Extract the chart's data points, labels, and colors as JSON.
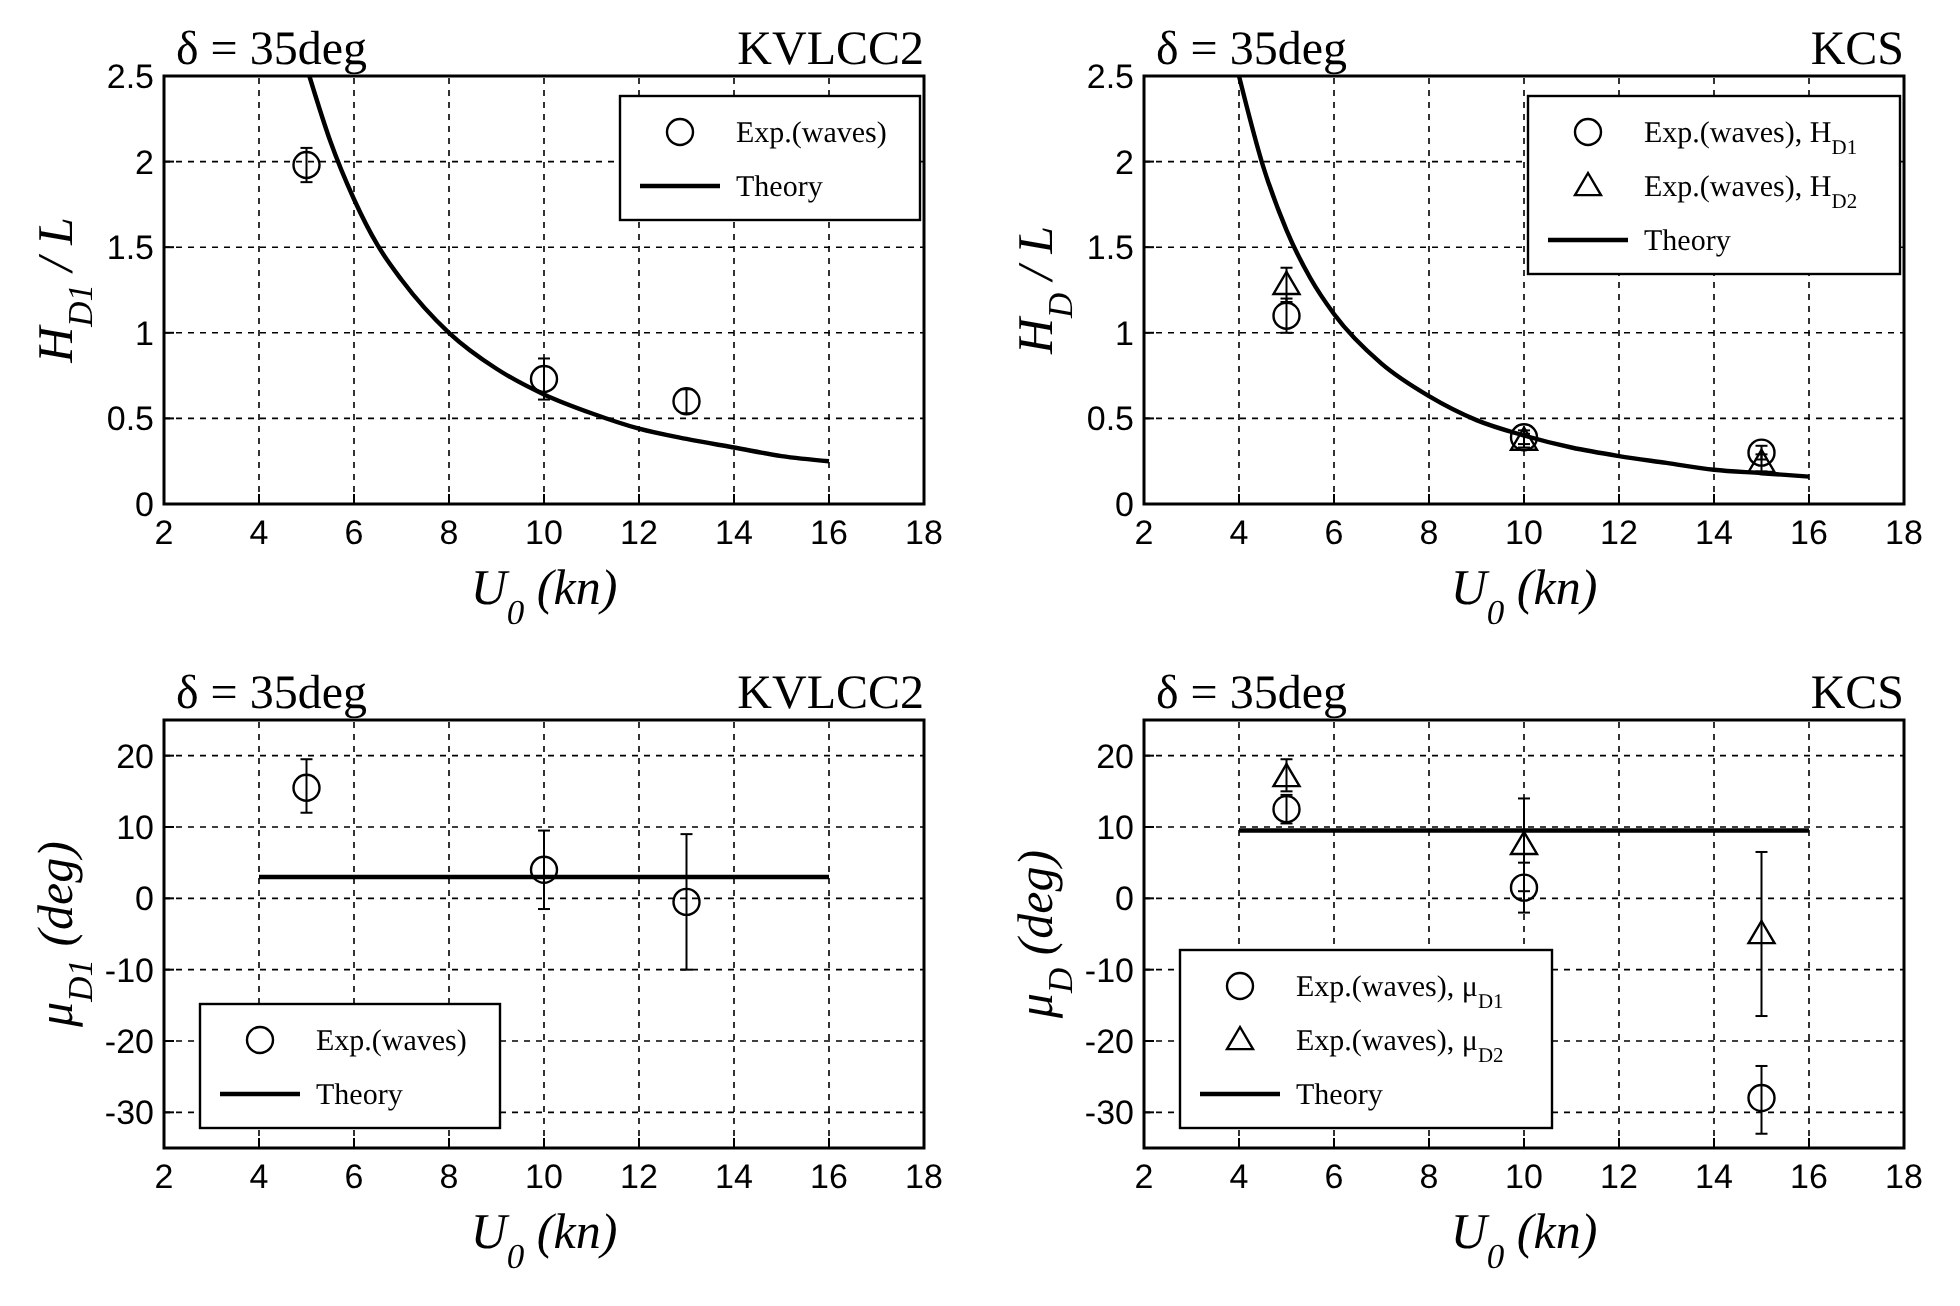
{
  "chart_data": [
    {
      "type": "scatter",
      "title": "δ = 35deg",
      "subtitle": "KVLCC2",
      "xlabel": "U$_{0}$ (kn)",
      "ylabel": "H$_{D1}$ / L",
      "xlim": [
        2,
        18
      ],
      "xticks": [
        2,
        4,
        6,
        8,
        10,
        12,
        14,
        16,
        18
      ],
      "ylim": [
        0,
        2.5
      ],
      "yticks": [
        0,
        0.5,
        1,
        1.5,
        2,
        2.5
      ],
      "grid": true,
      "legend": "top right",
      "series": [
        {
          "name": "Exp.(waves)",
          "marker": "circle",
          "color": "#000000",
          "x": [
            5,
            10,
            13
          ],
          "values": [
            1.98,
            0.73,
            0.6
          ],
          "errors": [
            [
              1.88,
              2.08
            ],
            [
              0.61,
              0.85
            ],
            [
              0.53,
              0.67
            ]
          ]
        },
        {
          "name": "Theory",
          "type": "line",
          "marker": "none",
          "color": "#000000",
          "x": [
            5.06,
            5.5,
            6,
            6.5,
            7,
            8,
            9,
            10,
            11,
            12,
            13,
            14,
            15,
            16
          ],
          "values": [
            2.5,
            2.12,
            1.78,
            1.51,
            1.31,
            1.0,
            0.79,
            0.64,
            0.53,
            0.44,
            0.38,
            0.33,
            0.28,
            0.25
          ]
        }
      ]
    },
    {
      "type": "scatter",
      "title": "δ = 35deg",
      "subtitle": "KCS",
      "xlabel": "U$_{0}$ (kn)",
      "ylabel": "H$_{D}$ / L",
      "xlim": [
        2,
        18
      ],
      "xticks": [
        2,
        4,
        6,
        8,
        10,
        12,
        14,
        16,
        18
      ],
      "ylim": [
        0,
        2.5
      ],
      "yticks": [
        0,
        0.5,
        1,
        1.5,
        2,
        2.5
      ],
      "grid": true,
      "legend": "top right",
      "series": [
        {
          "name": "Exp.(waves), H$_{D1}$",
          "marker": "circle",
          "color": "#000000",
          "x": [
            5,
            10,
            15
          ],
          "values": [
            1.1,
            0.39,
            0.3
          ],
          "errors": [
            [
              1.0,
              1.2
            ],
            [
              0.35,
              0.43
            ],
            [
              0.26,
              0.34
            ]
          ]
        },
        {
          "name": "Exp.(waves), H$_{D2}$",
          "marker": "triangle",
          "color": "#000000",
          "x": [
            5,
            10,
            15
          ],
          "values": [
            1.28,
            0.37,
            0.24
          ],
          "errors": [
            [
              1.18,
              1.38
            ],
            [
              0.33,
              0.41
            ],
            [
              0.19,
              0.29
            ]
          ]
        },
        {
          "name": "Theory",
          "type": "line",
          "marker": "none",
          "color": "#000000",
          "x": [
            4,
            4.5,
            5,
            5.5,
            6,
            7,
            8,
            9,
            10,
            11,
            12,
            13,
            14,
            15,
            16
          ],
          "values": [
            2.5,
            1.98,
            1.6,
            1.32,
            1.11,
            0.82,
            0.63,
            0.49,
            0.4,
            0.33,
            0.28,
            0.24,
            0.2,
            0.18,
            0.16
          ]
        }
      ]
    },
    {
      "type": "scatter",
      "title": "δ = 35deg",
      "subtitle": "KVLCC2",
      "xlabel": "U$_{0}$ (kn)",
      "ylabel": "μ$_{D1}$ (deg)",
      "xlim": [
        2,
        18
      ],
      "xticks": [
        2,
        4,
        6,
        8,
        10,
        12,
        14,
        16,
        18
      ],
      "ylim": [
        -35,
        25
      ],
      "yticks": [
        -30,
        -20,
        -10,
        0,
        10,
        20
      ],
      "grid": true,
      "legend": "bottom left",
      "series": [
        {
          "name": "Exp.(waves)",
          "marker": "circle",
          "color": "#000000",
          "x": [
            5,
            10,
            13
          ],
          "values": [
            15.5,
            4,
            -0.5
          ],
          "errors": [
            [
              12,
              19.5
            ],
            [
              -1.5,
              9.5
            ],
            [
              -10,
              9
            ]
          ]
        },
        {
          "name": "Theory",
          "type": "line",
          "marker": "none",
          "color": "#000000",
          "x": [
            4,
            16
          ],
          "values": [
            3,
            3
          ]
        }
      ]
    },
    {
      "type": "scatter",
      "title": "δ = 35deg",
      "subtitle": "KCS",
      "xlabel": "U$_{0}$ (kn)",
      "ylabel": "μ$_{D}$ (deg)",
      "xlim": [
        2,
        18
      ],
      "xticks": [
        2,
        4,
        6,
        8,
        10,
        12,
        14,
        16,
        18
      ],
      "ylim": [
        -35,
        25
      ],
      "yticks": [
        -30,
        -20,
        -10,
        0,
        10,
        20
      ],
      "grid": true,
      "legend": "bottom left",
      "series": [
        {
          "name": "Exp.(waves),  μ$_{D1}$",
          "marker": "circle",
          "color": "#000000",
          "x": [
            5,
            10,
            15
          ],
          "values": [
            12.5,
            1.5,
            -28
          ],
          "errors": [
            [
              10.5,
              14.5
            ],
            [
              -2,
              5
            ],
            [
              -33,
              -23.5
            ]
          ]
        },
        {
          "name": "Exp.(waves),  μ$_{D2}$",
          "marker": "triangle",
          "color": "#000000",
          "x": [
            5,
            10,
            15
          ],
          "values": [
            17,
            7.5,
            -5
          ],
          "errors": [
            [
              15,
              19.5
            ],
            [
              1,
              14
            ],
            [
              -16.5,
              6.5
            ]
          ]
        },
        {
          "name": "Theory",
          "type": "line",
          "marker": "none",
          "color": "#000000",
          "x": [
            4,
            16
          ],
          "values": [
            9.5,
            9.5
          ]
        }
      ]
    }
  ]
}
